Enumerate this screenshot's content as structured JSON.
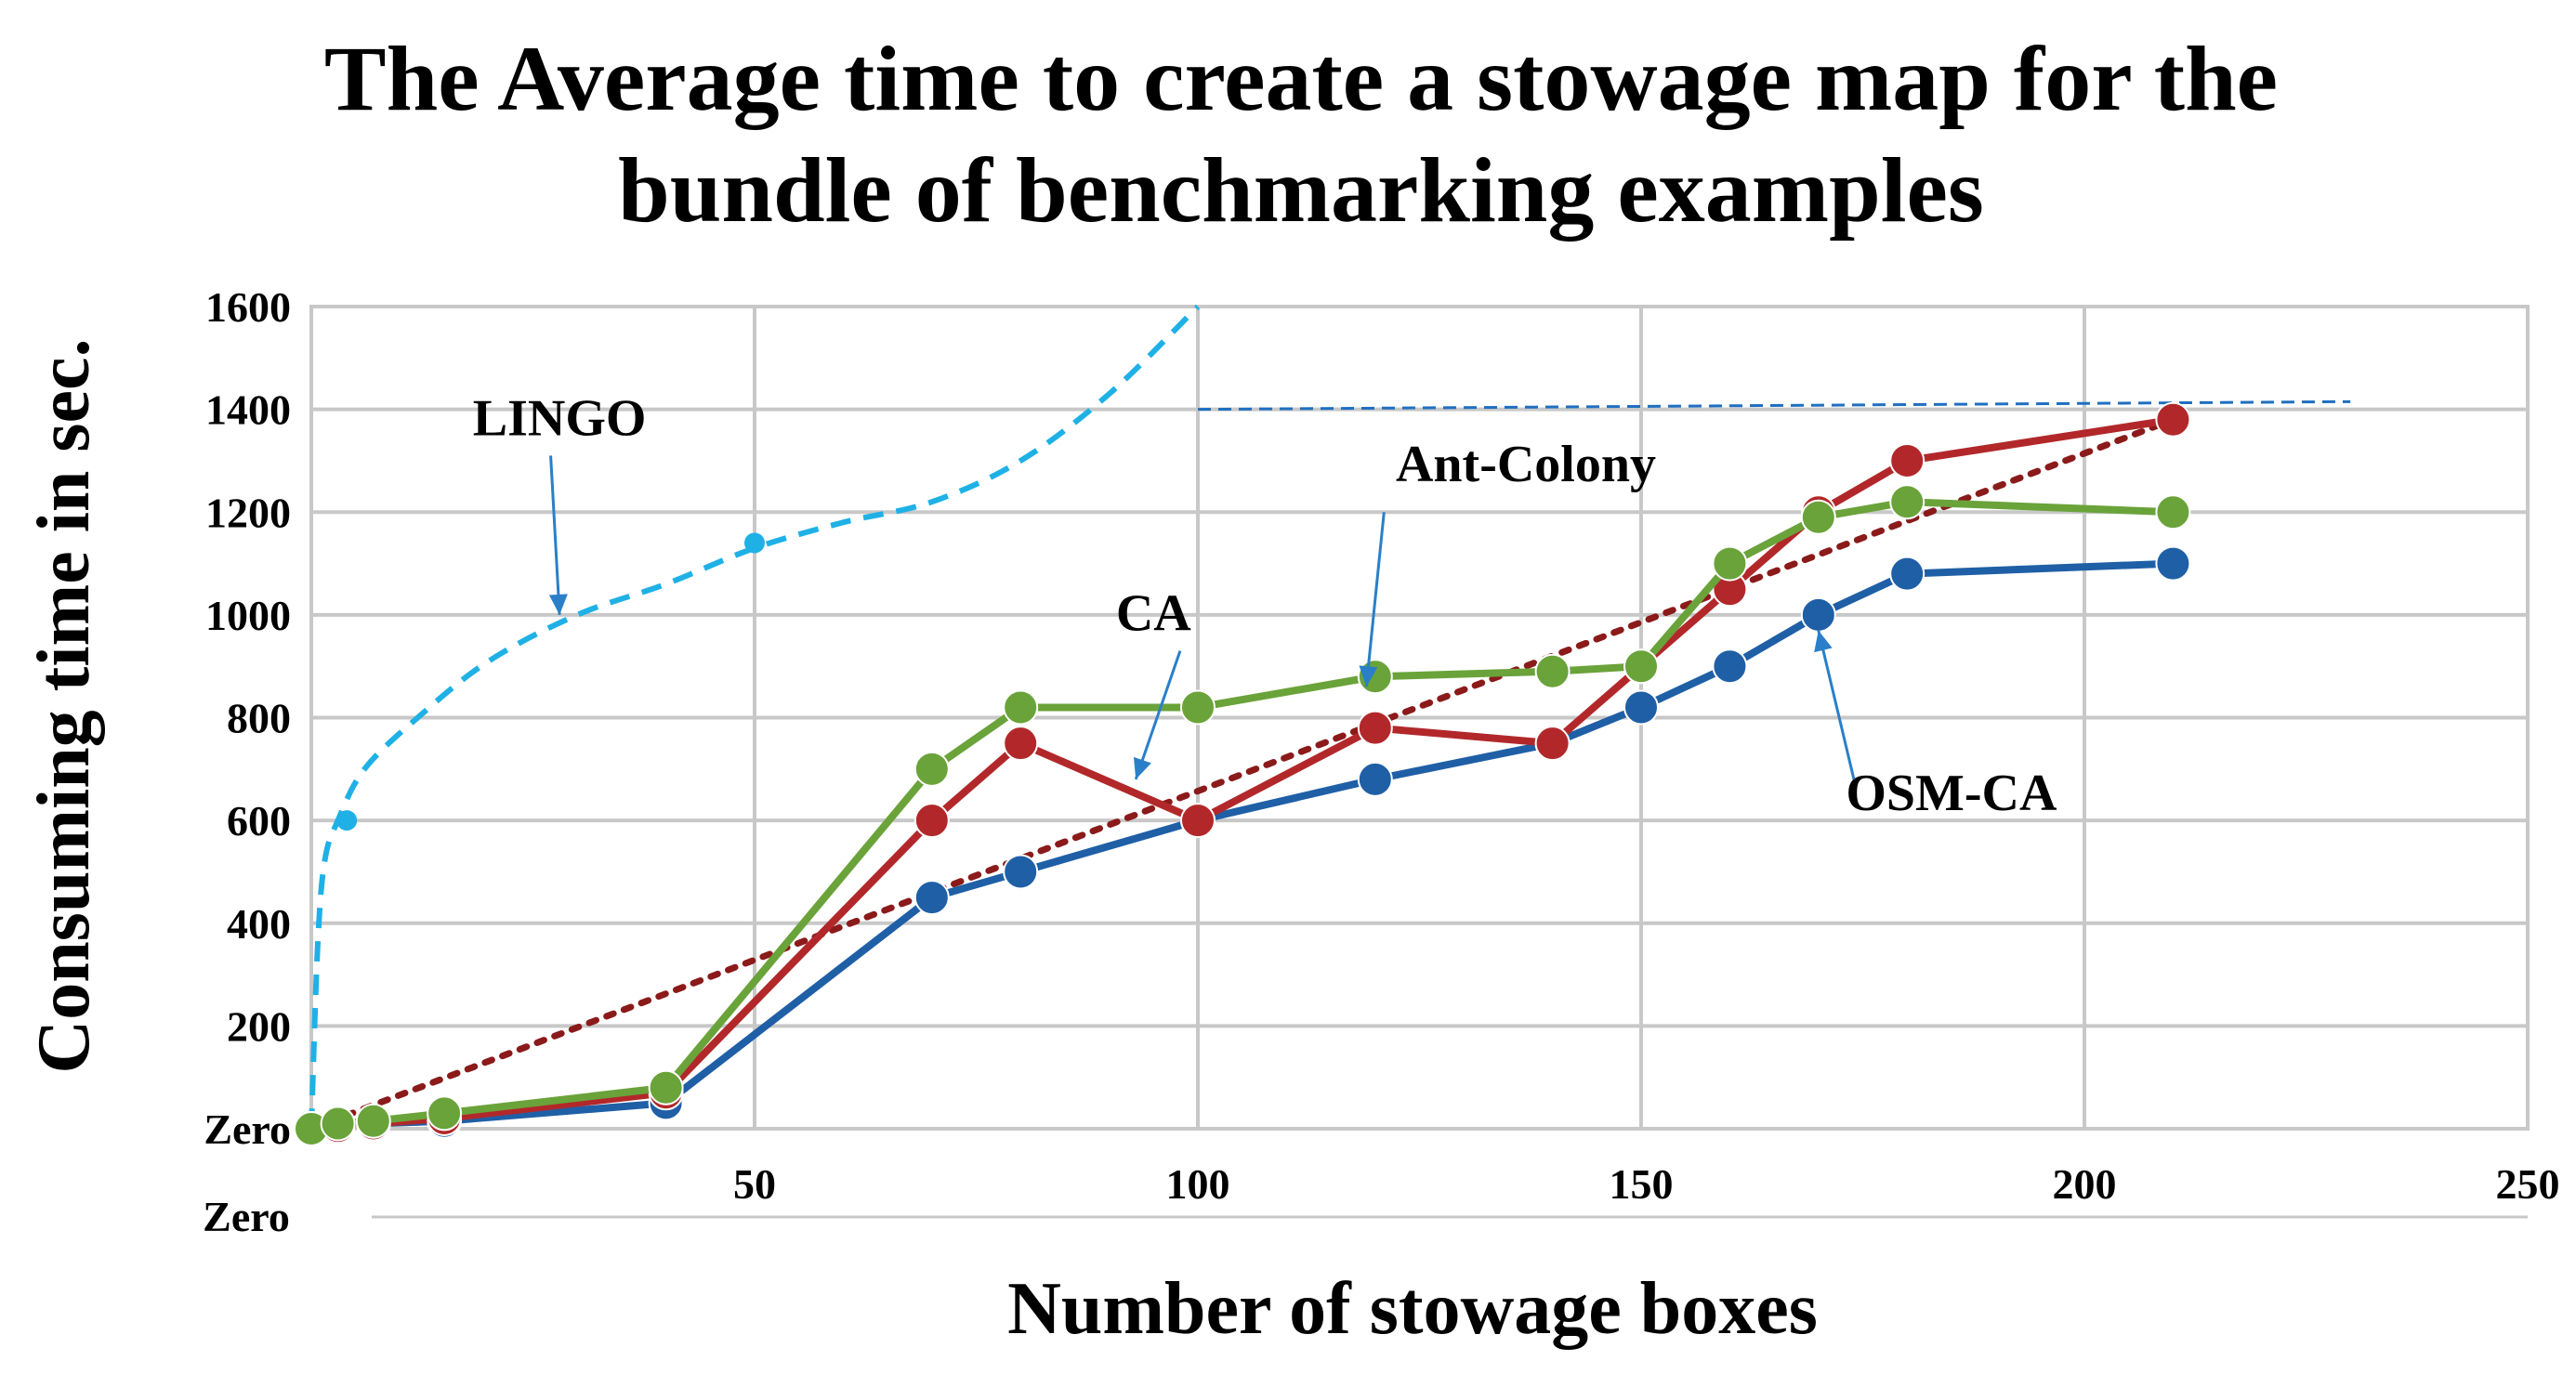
{
  "chart_data": {
    "type": "line",
    "title_lines": [
      "The Average time to create a stowage map for the",
      "bundle of benchmarking examples"
    ],
    "xlabel": "Number of stowage boxes",
    "ylabel": "Consuming time in sec.",
    "xlim": [
      0,
      250
    ],
    "ylim": [
      0,
      1600
    ],
    "x_ticks": [
      {
        "value": 0,
        "label": "Zero"
      },
      {
        "value": 50,
        "label": "50"
      },
      {
        "value": 100,
        "label": "100"
      },
      {
        "value": 150,
        "label": "150"
      },
      {
        "value": 200,
        "label": "200"
      },
      {
        "value": 250,
        "label": "250"
      }
    ],
    "y_ticks": [
      {
        "value": 0,
        "label": "Zero"
      },
      {
        "value": 200,
        "label": "200"
      },
      {
        "value": 400,
        "label": "400"
      },
      {
        "value": 600,
        "label": "600"
      },
      {
        "value": 800,
        "label": "800"
      },
      {
        "value": 1000,
        "label": "1000"
      },
      {
        "value": 1200,
        "label": "1200"
      },
      {
        "value": 1400,
        "label": "1400"
      },
      {
        "value": 1600,
        "label": "1600"
      }
    ],
    "grid": true,
    "series": [
      {
        "name": "OSM-CA",
        "color": "#1f5fa6",
        "style": "solid",
        "x": [
          0,
          3,
          7,
          15,
          40,
          70,
          80,
          100,
          120,
          140,
          150,
          160,
          170,
          180,
          210
        ],
        "y": [
          0,
          5,
          10,
          15,
          50,
          450,
          500,
          600,
          680,
          750,
          820,
          900,
          1000,
          1080,
          1100
        ]
      },
      {
        "name": "CA",
        "color": "#b2282a",
        "style": "solid",
        "x": [
          0,
          3,
          7,
          15,
          40,
          70,
          80,
          100,
          120,
          140,
          150,
          160,
          170,
          180,
          210
        ],
        "y": [
          0,
          5,
          10,
          20,
          70,
          600,
          750,
          600,
          780,
          750,
          900,
          1050,
          1200,
          1300,
          1380
        ]
      },
      {
        "name": "Ant-Colony",
        "color": "#6aa33a",
        "style": "solid",
        "x": [
          0,
          3,
          7,
          15,
          40,
          70,
          80,
          100,
          120,
          140,
          150,
          160,
          170,
          180,
          210
        ],
        "y": [
          0,
          10,
          15,
          30,
          80,
          700,
          820,
          820,
          880,
          890,
          900,
          1100,
          1190,
          1220,
          1200
        ]
      },
      {
        "name": "LINGO",
        "color": "#1fb1e6",
        "style": "dashed",
        "x": [
          0,
          0.7,
          1.5,
          3,
          6,
          12,
          20,
          30,
          40,
          50,
          60,
          70,
          80,
          90,
          100
        ],
        "y": [
          0,
          350,
          520,
          600,
          700,
          800,
          910,
          1000,
          1060,
          1130,
          1180,
          1220,
          1300,
          1430,
          1600
        ],
        "markers": [
          {
            "x": 4,
            "y": 600
          },
          {
            "x": 50,
            "y": 1140
          }
        ]
      },
      {
        "name": "CA trend",
        "color": "#8b1a1a",
        "style": "dotted",
        "x": [
          0,
          210
        ],
        "y": [
          0,
          1380
        ]
      },
      {
        "name": "LINGO limit",
        "color": "#1f6fc0",
        "style": "dashed-thin",
        "x": [
          100,
          230
        ],
        "y": [
          1400,
          1415
        ]
      }
    ],
    "annotations": [
      {
        "text": "LINGO",
        "x": 28,
        "y": 1350,
        "arrow_to": {
          "x": 28,
          "y": 1000
        },
        "arrow_from": {
          "x": 27,
          "y": 1310
        }
      },
      {
        "text": "Ant-Colony",
        "x": 137,
        "y": 1260,
        "arrow_to": {
          "x": 119,
          "y": 860
        },
        "arrow_from": {
          "x": 121,
          "y": 1200
        }
      },
      {
        "text": "CA",
        "x": 95,
        "y": 970,
        "arrow_to": {
          "x": 93,
          "y": 680
        },
        "arrow_from": {
          "x": 98,
          "y": 930
        }
      },
      {
        "text": "OSM-CA",
        "x": 185,
        "y": 620,
        "arrow_to": {
          "x": 170,
          "y": 970
        },
        "arrow_from": {
          "x": 174,
          "y": 680
        }
      }
    ]
  }
}
